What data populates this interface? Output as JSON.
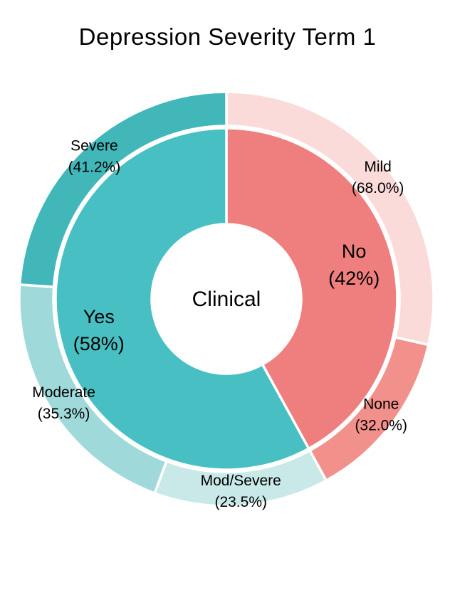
{
  "chart_data": {
    "type": "pie",
    "subtype": "sunburst-nested-donut",
    "title": "Depression Severity Term 1",
    "center_label": "Clinical",
    "direction": "clockwise",
    "start_angle_deg": 0,
    "legend_position": "none",
    "units": "percent",
    "segments": [
      {
        "label": "No",
        "value": 42,
        "display": "(42%)",
        "color": "#EF7F7E",
        "children": [
          {
            "label": "Mild",
            "value": 68.0,
            "display": "(68.0%)",
            "color": "#FBDBD9"
          },
          {
            "label": "None",
            "value": 32.0,
            "display": "(32.0%)",
            "color": "#F2908B"
          }
        ]
      },
      {
        "label": "Yes",
        "value": 58,
        "display": "(58%)",
        "color": "#48C0C3",
        "children": [
          {
            "label": "Mod/Severe",
            "value": 23.5,
            "display": "(23.5%)",
            "color": "#C9E9E9"
          },
          {
            "label": "Moderate",
            "value": 35.3,
            "display": "(35.3%)",
            "color": "#9FD9DA"
          },
          {
            "label": "Severe",
            "value": 41.2,
            "display": "(41.2%)",
            "color": "#41B7B9"
          }
        ]
      }
    ],
    "colors": {
      "separator": "#ffffff",
      "text": "#000000",
      "background": "#ffffff"
    }
  }
}
